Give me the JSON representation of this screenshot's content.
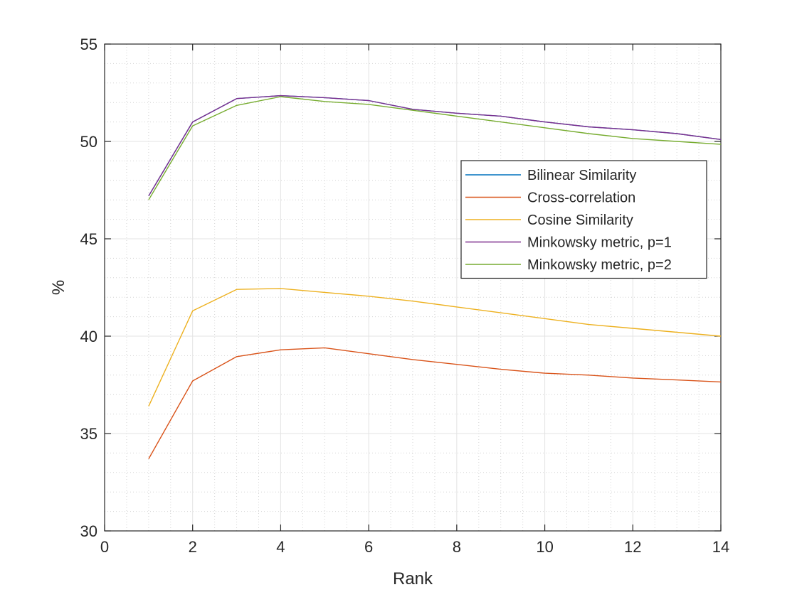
{
  "chart_data": {
    "type": "line",
    "title": "",
    "xlabel": "Rank",
    "ylabel": "%",
    "xlim": [
      0,
      14
    ],
    "ylim": [
      30,
      55
    ],
    "xticks": [
      0,
      2,
      4,
      6,
      8,
      10,
      12,
      14
    ],
    "yticks": [
      30,
      35,
      40,
      45,
      50,
      55
    ],
    "grid": true,
    "minor_grid": true,
    "legend_position": "right, upper middle",
    "x": [
      1,
      2,
      3,
      4,
      5,
      6,
      7,
      8,
      9,
      10,
      11,
      12,
      13,
      14
    ],
    "series": [
      {
        "name": "Bilinear Similarity",
        "color": "#0072BD",
        "values": [
          47.2,
          51.0,
          52.2,
          52.35,
          52.25,
          52.1,
          51.65,
          51.45,
          51.3,
          51.0,
          50.75,
          50.6,
          50.4,
          50.1
        ]
      },
      {
        "name": "Cross-correlation",
        "color": "#D95319",
        "values": [
          33.7,
          37.7,
          38.95,
          39.3,
          39.4,
          39.1,
          38.8,
          38.55,
          38.3,
          38.1,
          38.0,
          37.85,
          37.75,
          37.65
        ]
      },
      {
        "name": "Cosine Similarity",
        "color": "#EDB120",
        "values": [
          36.4,
          41.3,
          42.4,
          42.45,
          42.25,
          42.05,
          41.8,
          41.5,
          41.2,
          40.9,
          40.6,
          40.4,
          40.2,
          40.0
        ]
      },
      {
        "name": "Minkowsky metric, p=1",
        "color": "#7E2F8E",
        "values": [
          47.2,
          51.0,
          52.2,
          52.35,
          52.25,
          52.1,
          51.65,
          51.45,
          51.3,
          51.0,
          50.75,
          50.6,
          50.4,
          50.1
        ]
      },
      {
        "name": "Minkowsky metric, p=2",
        "color": "#77AC30",
        "values": [
          47.0,
          50.8,
          51.85,
          52.3,
          52.05,
          51.9,
          51.6,
          51.3,
          51.0,
          50.7,
          50.4,
          50.15,
          50.0,
          49.85
        ]
      }
    ]
  }
}
